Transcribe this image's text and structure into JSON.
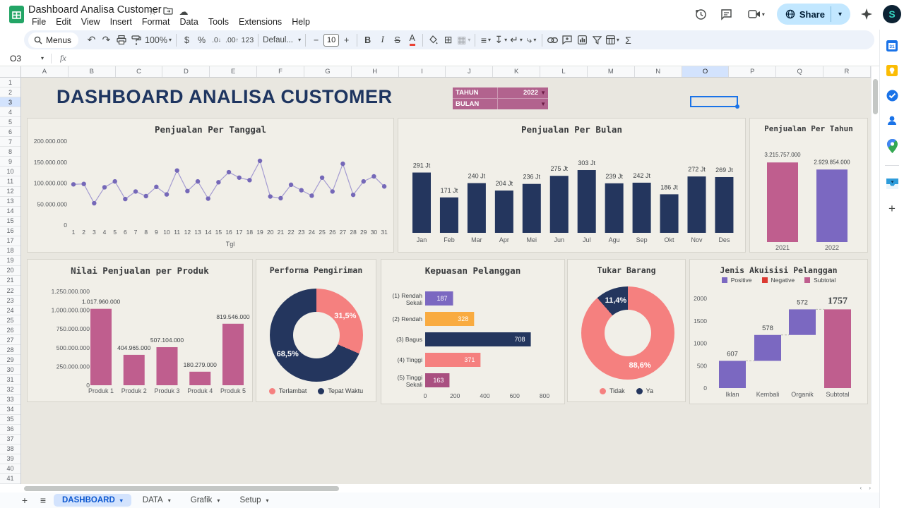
{
  "titlebar": {
    "doc_title": "Dashboard Analisa Customer",
    "menu": [
      "File",
      "Edit",
      "View",
      "Insert",
      "Format",
      "Data",
      "Tools",
      "Extensions",
      "Help"
    ],
    "share_label": "Share"
  },
  "toolbar": {
    "menus_label": "Menus",
    "zoom": "100%",
    "currency": "$",
    "percent": "%",
    "dec_decrease": ".0",
    "dec_increase": ".00",
    "more_formats": "123",
    "font_name": "Defaul...",
    "font_size": "10",
    "minus": "−",
    "plus": "+",
    "bold": "B",
    "italic": "I",
    "strike": "S",
    "text_color": "A",
    "sigma": "Σ"
  },
  "icons": {
    "undo": "↶",
    "redo": "↷",
    "borders": "⊞",
    "merge": "▦",
    "align": "≡",
    "valign": "↧",
    "wrap": "↵",
    "rotate": "⤷",
    "star": "☆",
    "cloud": "☁"
  },
  "formula_bar": {
    "cell_ref": "O3",
    "fx_label": "fx"
  },
  "grid": {
    "columns": [
      "A",
      "B",
      "C",
      "D",
      "E",
      "F",
      "G",
      "H",
      "I",
      "J",
      "K",
      "L",
      "M",
      "N",
      "O",
      "P",
      "Q",
      "R"
    ],
    "row_count": 41,
    "selected_column": "O",
    "selected_row": 3
  },
  "dashboard": {
    "title": "DASHBOARD ANALISA CUSTOMER",
    "filters": {
      "tahun_label": "TAHUN",
      "tahun_value": "2022",
      "bulan_label": "BULAN",
      "bulan_value": ""
    }
  },
  "sheet_tabs": {
    "tabs": [
      {
        "label": "DASHBOARD",
        "active": true
      },
      {
        "label": "DATA",
        "active": false
      },
      {
        "label": "Grafik",
        "active": false
      },
      {
        "label": "Setup",
        "active": false
      }
    ]
  },
  "colors": {
    "navy": "#24365e",
    "purple": "#7b68c1",
    "pink": "#bf5e8e",
    "salmon": "#f5807f",
    "orange": "#f9ab40",
    "magenta": "#a94f80",
    "red": "#dc3a32",
    "sheet_bg": "#e9e7e0",
    "card_bg": "#f1efe8",
    "accent_blue": "#1a73e8",
    "filter_pink": "#b2638e"
  },
  "chart_data": [
    {
      "id": "penjualan-per-tanggal",
      "type": "line",
      "title": "Penjualan Per Tanggal",
      "xlabel": "Tgl",
      "x": [
        1,
        2,
        3,
        4,
        5,
        6,
        7,
        8,
        9,
        10,
        11,
        12,
        13,
        14,
        15,
        16,
        17,
        18,
        19,
        20,
        21,
        22,
        23,
        24,
        25,
        26,
        27,
        28,
        29,
        30,
        31
      ],
      "values_jt": [
        97,
        98,
        52,
        90,
        104,
        62,
        80,
        69,
        91,
        73,
        130,
        81,
        104,
        63,
        102,
        126,
        113,
        107,
        153,
        68,
        64,
        96,
        83,
        70,
        113,
        80,
        146,
        72,
        104,
        116,
        92
      ],
      "ylim_jt": [
        0,
        200
      ],
      "ytick_labels": [
        "0",
        "50.000.000",
        "100.000.000",
        "150.000.000",
        "200.000.000"
      ],
      "line_color": "#a49bd1",
      "dot_color": "#7568b8"
    },
    {
      "id": "penjualan-per-bulan",
      "type": "bar",
      "title": "Penjualan Per Bulan",
      "categories": [
        "Jan",
        "Feb",
        "Mar",
        "Apr",
        "Mei",
        "Jun",
        "Jul",
        "Agu",
        "Sep",
        "Okt",
        "Nov",
        "Des"
      ],
      "values_jt": [
        291,
        171,
        240,
        204,
        236,
        275,
        303,
        239,
        242,
        186,
        272,
        269
      ],
      "labels": [
        "291 Jt",
        "171 Jt",
        "240 Jt",
        "204 Jt",
        "236 Jt",
        "275 Jt",
        "303 Jt",
        "239 Jt",
        "242 Jt",
        "186 Jt",
        "272 Jt",
        "269 Jt"
      ],
      "bar_color": "#24365e"
    },
    {
      "id": "penjualan-per-tahun",
      "type": "bar",
      "title": "Penjualan Per Tahun",
      "categories": [
        "2021",
        "2022"
      ],
      "values": [
        3215757000,
        2929854000
      ],
      "labels": [
        "3.215.757.000",
        "2.929.854.000"
      ],
      "bar_colors": [
        "#bf5e8e",
        "#7b68c1"
      ]
    },
    {
      "id": "nilai-penjualan-per-produk",
      "type": "bar",
      "title": "Nilai Penjualan per Produk",
      "categories": [
        "Produk 1",
        "Produk 2",
        "Produk 3",
        "Produk 4",
        "Produk 5"
      ],
      "values": [
        1017960000,
        404965000,
        507104000,
        180279000,
        819546000
      ],
      "labels": [
        "1.017.960.000",
        "404.965.000",
        "507.104.000",
        "180.279.000",
        "819.546.000"
      ],
      "ytick_labels": [
        "0",
        "250.000.000",
        "500.000.000",
        "750.000.000",
        "1.000.000.000",
        "1.250.000.000"
      ],
      "ylim": [
        0,
        1250000000
      ],
      "bar_color": "#bf5e8e"
    },
    {
      "id": "performa-pengiriman",
      "type": "pie",
      "donut": true,
      "title": "Performa Pengiriman",
      "slices": [
        {
          "label": "Terlambat",
          "pct": 31.5,
          "display": "31,5%",
          "color": "#f5807f"
        },
        {
          "label": "Tepat Waktu",
          "pct": 68.5,
          "display": "68,5%",
          "color": "#24365e"
        }
      ]
    },
    {
      "id": "kepuasan-pelanggan",
      "type": "bar-h",
      "title": "Kepuasan Pelanggan",
      "categories": [
        [
          "(1) Rendah",
          "Sekali"
        ],
        [
          "(2) Rendah"
        ],
        [
          "(3) Bagus"
        ],
        [
          "(4) Tinggi"
        ],
        [
          "(5) Tinggi",
          "Sekali"
        ]
      ],
      "values": [
        187,
        328,
        708,
        371,
        163
      ],
      "bar_colors": [
        "#7b68c1",
        "#f9ab40",
        "#24365e",
        "#f5807f",
        "#a94f80"
      ],
      "xticks": [
        "0",
        "200",
        "400",
        "600",
        "800"
      ],
      "xlim": [
        0,
        800
      ]
    },
    {
      "id": "tukar-barang",
      "type": "pie",
      "donut": true,
      "title": "Tukar Barang",
      "slices": [
        {
          "label": "Tidak",
          "pct": 88.6,
          "display": "88,6%",
          "color": "#f5807f"
        },
        {
          "label": "Ya",
          "pct": 11.4,
          "display": "11,4%",
          "color": "#24365e"
        }
      ]
    },
    {
      "id": "jenis-akuisisi-pelanggan",
      "type": "waterfall",
      "title": "Jenis Akuisisi Pelanggan",
      "legend": [
        {
          "label": "Positive",
          "color": "#7b68c1"
        },
        {
          "label": "Negative",
          "color": "#dc3a32"
        },
        {
          "label": "Subtotal",
          "color": "#bf5e8e"
        }
      ],
      "categories": [
        "Iklan",
        "Kembali",
        "Organik",
        "Subtotal"
      ],
      "bars": [
        {
          "label": "607",
          "start": 0,
          "end": 607,
          "color": "#7b68c1",
          "is_total": false
        },
        {
          "label": "578",
          "start": 607,
          "end": 1185,
          "color": "#7b68c1",
          "is_total": false
        },
        {
          "label": "572",
          "start": 1185,
          "end": 1757,
          "color": "#7b68c1",
          "is_total": false
        },
        {
          "label": "1757",
          "start": 0,
          "end": 1757,
          "color": "#bf5e8e",
          "is_total": true
        }
      ],
      "yticks": [
        "0",
        "500",
        "1000",
        "1500",
        "2000"
      ],
      "ylim": [
        0,
        2000
      ]
    }
  ]
}
